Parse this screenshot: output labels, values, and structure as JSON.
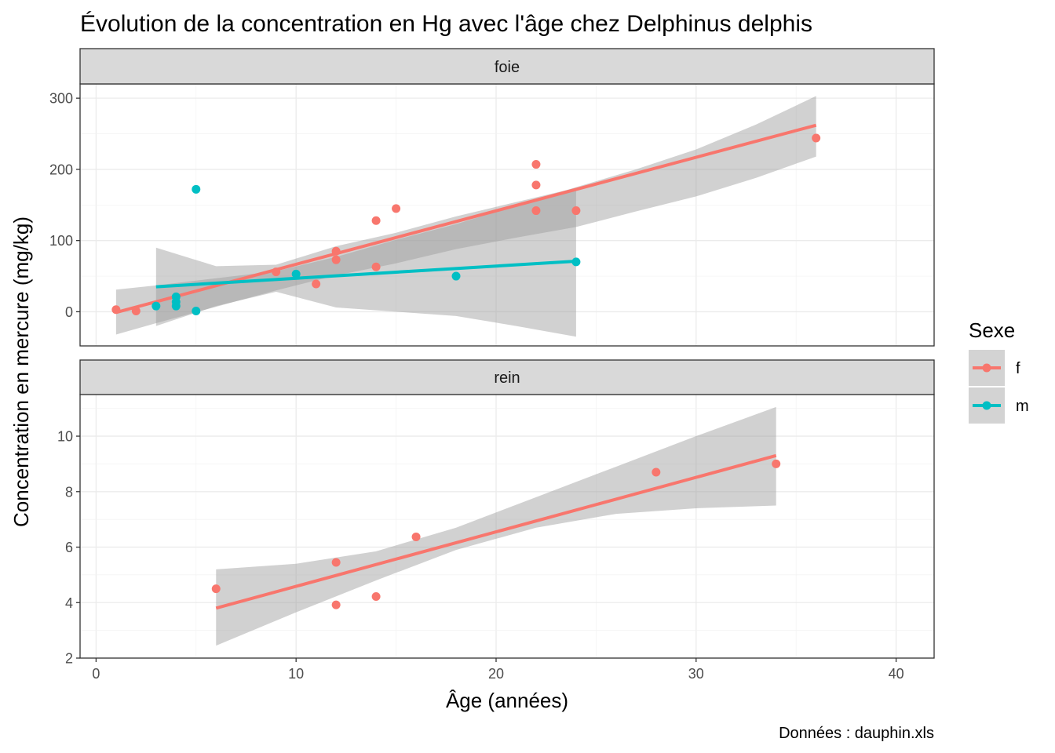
{
  "chart_data": {
    "type": "scatter",
    "title": "Évolution de la concentration en Hg avec l'âge chez Delphinus delphis",
    "xlabel": "Âge (années)",
    "ylabel": "Concentration en mercure (mg/kg)",
    "caption": "Données : dauphin.xls",
    "xlim": [
      -0.8,
      41.9
    ],
    "xticks": [
      0,
      10,
      20,
      30,
      40
    ],
    "xtick_labels": [
      "0",
      "10",
      "20",
      "30",
      "40"
    ],
    "grid": true,
    "legend": {
      "title": "Sexe",
      "position": "right",
      "entries": [
        {
          "label": "f",
          "color": "#F8766D"
        },
        {
          "label": "m",
          "color": "#00BFC4"
        }
      ]
    },
    "panels": [
      {
        "name": "foie",
        "ylim": [
          -48,
          320
        ],
        "yticks": [
          0,
          100,
          200,
          300
        ],
        "ytick_labels": [
          "0",
          "100",
          "200",
          "300"
        ],
        "series": [
          {
            "name": "f",
            "color": "#F8766D",
            "points": [
              [
                1,
                3
              ],
              [
                2,
                1
              ],
              [
                9,
                56
              ],
              [
                11,
                39
              ],
              [
                12,
                85
              ],
              [
                12,
                73
              ],
              [
                14,
                128
              ],
              [
                14,
                63
              ],
              [
                15,
                145
              ],
              [
                22,
                207
              ],
              [
                22,
                178
              ],
              [
                22,
                142
              ],
              [
                24,
                142
              ],
              [
                36,
                244
              ]
            ],
            "fit": {
              "x": [
                1,
                36
              ],
              "y": [
                -1,
                262
              ]
            },
            "band": {
              "x": [
                1,
                3,
                6,
                9,
                12,
                15,
                18,
                21,
                24,
                27,
                30,
                33,
                36
              ],
              "lower": [
                -32,
                -16,
                7,
                30,
                51,
                68,
                88,
                104,
                119,
                141,
                162,
                188,
                218
              ],
              "upper": [
                31,
                37,
                47,
                57,
                77,
                101,
                123,
                149,
                175,
                200,
                228,
                263,
                303
              ]
            }
          },
          {
            "name": "m",
            "color": "#00BFC4",
            "points": [
              [
                3,
                8
              ],
              [
                4,
                21
              ],
              [
                4,
                14
              ],
              [
                4,
                8
              ],
              [
                5,
                1
              ],
              [
                5,
                172
              ],
              [
                10,
                53
              ],
              [
                18,
                50
              ],
              [
                24,
                70
              ]
            ],
            "fit": {
              "x": [
                3,
                24
              ],
              "y": [
                35,
                71
              ]
            },
            "band": {
              "x": [
                3,
                6,
                9,
                12,
                15,
                18,
                21,
                24
              ],
              "lower": [
                -20,
                8,
                28,
                6,
                0,
                -6,
                -20,
                -35
              ],
              "upper": [
                90,
                64,
                66,
                92,
                111,
                134,
                154,
                174
              ]
            }
          }
        ]
      },
      {
        "name": "rein",
        "ylim": [
          2,
          11.5
        ],
        "yticks": [
          2,
          4,
          6,
          8,
          10
        ],
        "ytick_labels": [
          "2",
          "4",
          "6",
          "8",
          "10"
        ],
        "series": [
          {
            "name": "f",
            "color": "#F8766D",
            "points": [
              [
                6,
                4.5
              ],
              [
                12,
                5.45
              ],
              [
                12,
                3.92
              ],
              [
                14,
                4.22
              ],
              [
                16,
                6.37
              ],
              [
                28,
                8.7
              ],
              [
                34,
                9.0
              ]
            ],
            "fit": {
              "x": [
                6,
                34
              ],
              "y": [
                3.8,
                9.3
              ]
            },
            "band": {
              "x": [
                6,
                10,
                14,
                18,
                22,
                26,
                30,
                34
              ],
              "lower": [
                2.45,
                3.65,
                4.8,
                5.9,
                6.7,
                7.2,
                7.4,
                7.5
              ],
              "upper": [
                5.2,
                5.4,
                5.85,
                6.7,
                7.8,
                8.9,
                10.0,
                11.05
              ]
            }
          }
        ]
      }
    ]
  }
}
